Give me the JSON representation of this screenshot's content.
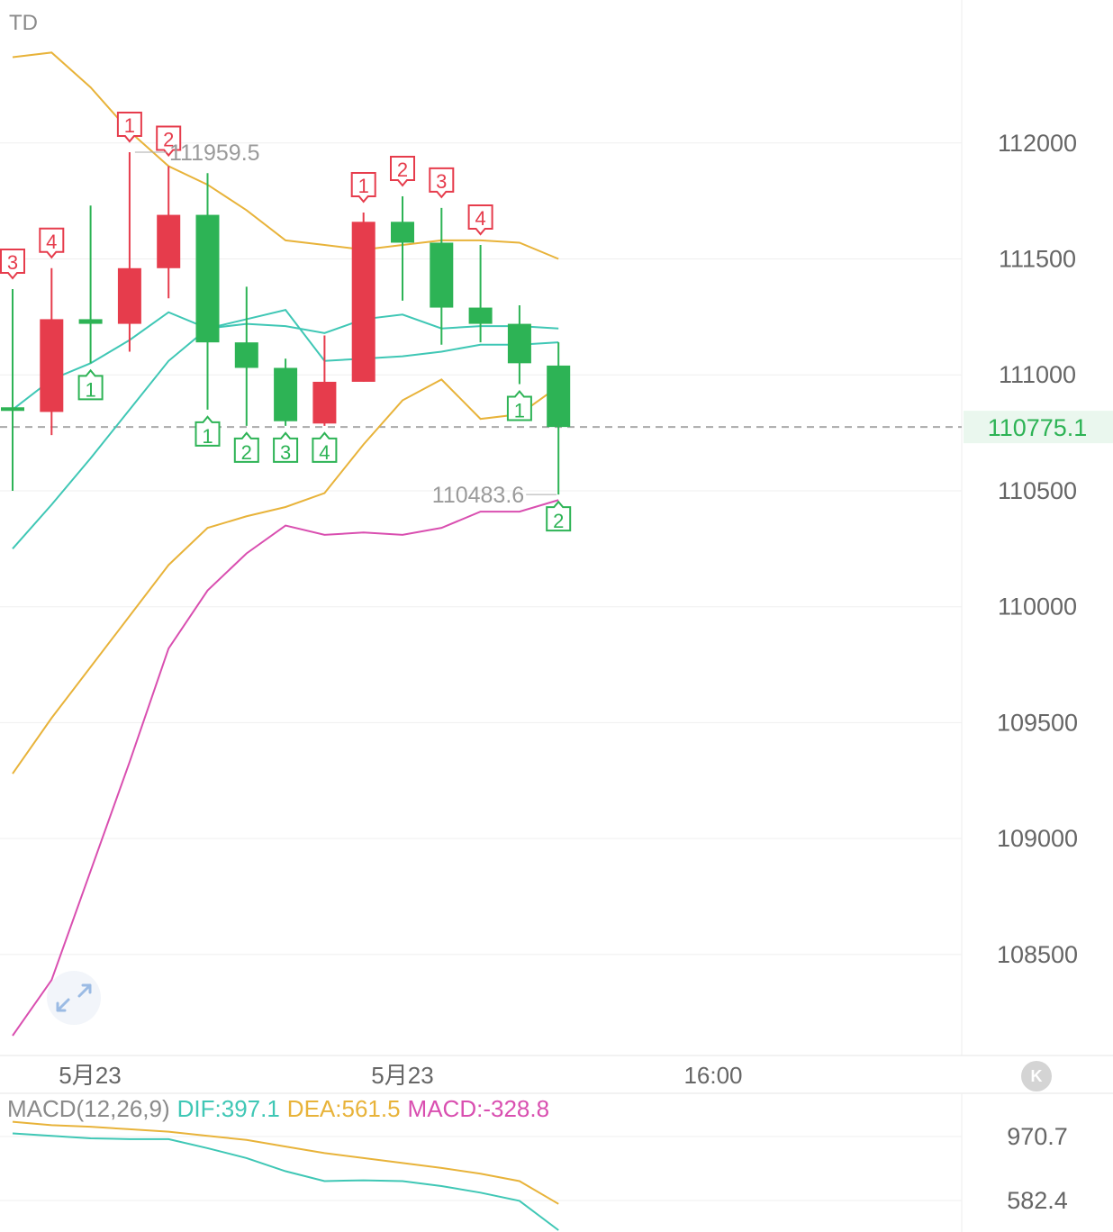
{
  "indicator_label": "TD",
  "price_tags": {
    "high": "111959.5",
    "low": "110483.6",
    "current": "110775.1"
  },
  "x_axis_labels": [
    "5月23",
    "5月23",
    "16:00"
  ],
  "k_button_label": "K",
  "macd_legend": {
    "name": "MACD(12,26,9)",
    "dif": "DIF:397.1",
    "dea": "DEA:561.5",
    "macd": "MACD:-328.8"
  },
  "macd_axis_labels": [
    "970.7",
    "582.4"
  ],
  "colors": {
    "up": "#e63c4c",
    "down": "#2db355",
    "ma_short": "#3fc7b5",
    "ma_long": "#e8b33a",
    "ma_pink": "#d94fb0",
    "current_price": "#2db355",
    "grid": "#efefef",
    "axis_text": "#666666"
  },
  "chart_data": {
    "type": "candlestick",
    "title": "",
    "y_ticks": [
      108500,
      109000,
      109500,
      110000,
      110500,
      111000,
      111500,
      112000
    ],
    "ylim": [
      108150,
      112570
    ],
    "current_price": 110775.1,
    "candles": [
      {
        "open": 110860,
        "close": 110860,
        "high": 111370,
        "low": 110500
      },
      {
        "open": 110840,
        "close": 111240,
        "high": 111460,
        "low": 110740
      },
      {
        "open": 111240,
        "close": 111220,
        "high": 111730,
        "low": 111050
      },
      {
        "open": 111220,
        "close": 111460,
        "high": 111960,
        "low": 111100
      },
      {
        "open": 111460,
        "close": 111690,
        "high": 111900,
        "low": 111330
      },
      {
        "open": 111690,
        "close": 111140,
        "high": 111870,
        "low": 110850
      },
      {
        "open": 111140,
        "close": 111030,
        "high": 111380,
        "low": 110780
      },
      {
        "open": 111030,
        "close": 110800,
        "high": 111070,
        "low": 110780
      },
      {
        "open": 110790,
        "close": 110970,
        "high": 111170,
        "low": 110780
      },
      {
        "open": 110970,
        "close": 111660,
        "high": 111700,
        "low": 110970
      },
      {
        "open": 111660,
        "close": 111570,
        "high": 111770,
        "low": 111320
      },
      {
        "open": 111570,
        "close": 111290,
        "high": 111720,
        "low": 111130
      },
      {
        "open": 111290,
        "close": 111220,
        "high": 111560,
        "low": 111140
      },
      {
        "open": 111220,
        "close": 111050,
        "high": 111300,
        "low": 110960
      },
      {
        "open": 111040,
        "close": 110775.1,
        "high": 111140,
        "low": 110483.6
      }
    ],
    "td_labels": [
      {
        "index": 0,
        "label": "3",
        "pos": "top"
      },
      {
        "index": 1,
        "label": "4",
        "pos": "top"
      },
      {
        "index": 2,
        "label": "1",
        "pos": "bottom"
      },
      {
        "index": 3,
        "label": "1",
        "pos": "top"
      },
      {
        "index": 4,
        "label": "2",
        "pos": "top"
      },
      {
        "index": 5,
        "label": "1",
        "pos": "bottom"
      },
      {
        "index": 6,
        "label": "2",
        "pos": "bottom"
      },
      {
        "index": 7,
        "label": "3",
        "pos": "bottom"
      },
      {
        "index": 8,
        "label": "4",
        "pos": "bottom"
      },
      {
        "index": 9,
        "label": "1",
        "pos": "top"
      },
      {
        "index": 10,
        "label": "2",
        "pos": "top"
      },
      {
        "index": 11,
        "label": "3",
        "pos": "top"
      },
      {
        "index": 12,
        "label": "4",
        "pos": "top"
      },
      {
        "index": 13,
        "label": "1",
        "pos": "bottom"
      },
      {
        "index": 14,
        "label": "2",
        "pos": "bottom"
      }
    ],
    "lines": [
      {
        "color": "#e8b33a",
        "values": [
          112370,
          112390,
          112240,
          112050,
          111900,
          111820,
          111710,
          111580,
          111560,
          111540,
          111560,
          111580,
          111580,
          111570,
          111500
        ]
      },
      {
        "color": "#3fc7b5",
        "values": [
          110850,
          110980,
          111050,
          111150,
          111270,
          111200,
          111220,
          111210,
          111180,
          111240,
          111260,
          111200,
          111210,
          111210,
          111200
        ]
      },
      {
        "color": "#3fc7b5",
        "values": [
          110250,
          110440,
          110640,
          110850,
          111060,
          111200,
          111240,
          111280,
          111060,
          111070,
          111080,
          111100,
          111130,
          111130,
          111140
        ]
      },
      {
        "color": "#e8b33a",
        "values": [
          109280,
          109520,
          109740,
          109960,
          110180,
          110340,
          110390,
          110430,
          110490,
          110700,
          110890,
          110980,
          110810,
          110830,
          110950
        ]
      },
      {
        "color": "#d94fb0",
        "values": [
          108150,
          108390,
          108860,
          109330,
          109820,
          110070,
          110230,
          110350,
          110310,
          110320,
          110310,
          110340,
          110410,
          110410,
          110460
        ]
      }
    ],
    "macd": {
      "series": [
        {
          "color": "#e8b33a",
          "values": [
            1060,
            1040,
            1030,
            1015,
            1000,
            975,
            950,
            910,
            870,
            840,
            810,
            780,
            745,
            700,
            561.5
          ]
        },
        {
          "color": "#3fc7b5",
          "values": [
            990,
            975,
            960,
            955,
            955,
            900,
            840,
            760,
            700,
            705,
            700,
            670,
            630,
            580,
            397.1
          ]
        }
      ],
      "y_ticks": [
        970.7,
        582.4
      ]
    }
  }
}
